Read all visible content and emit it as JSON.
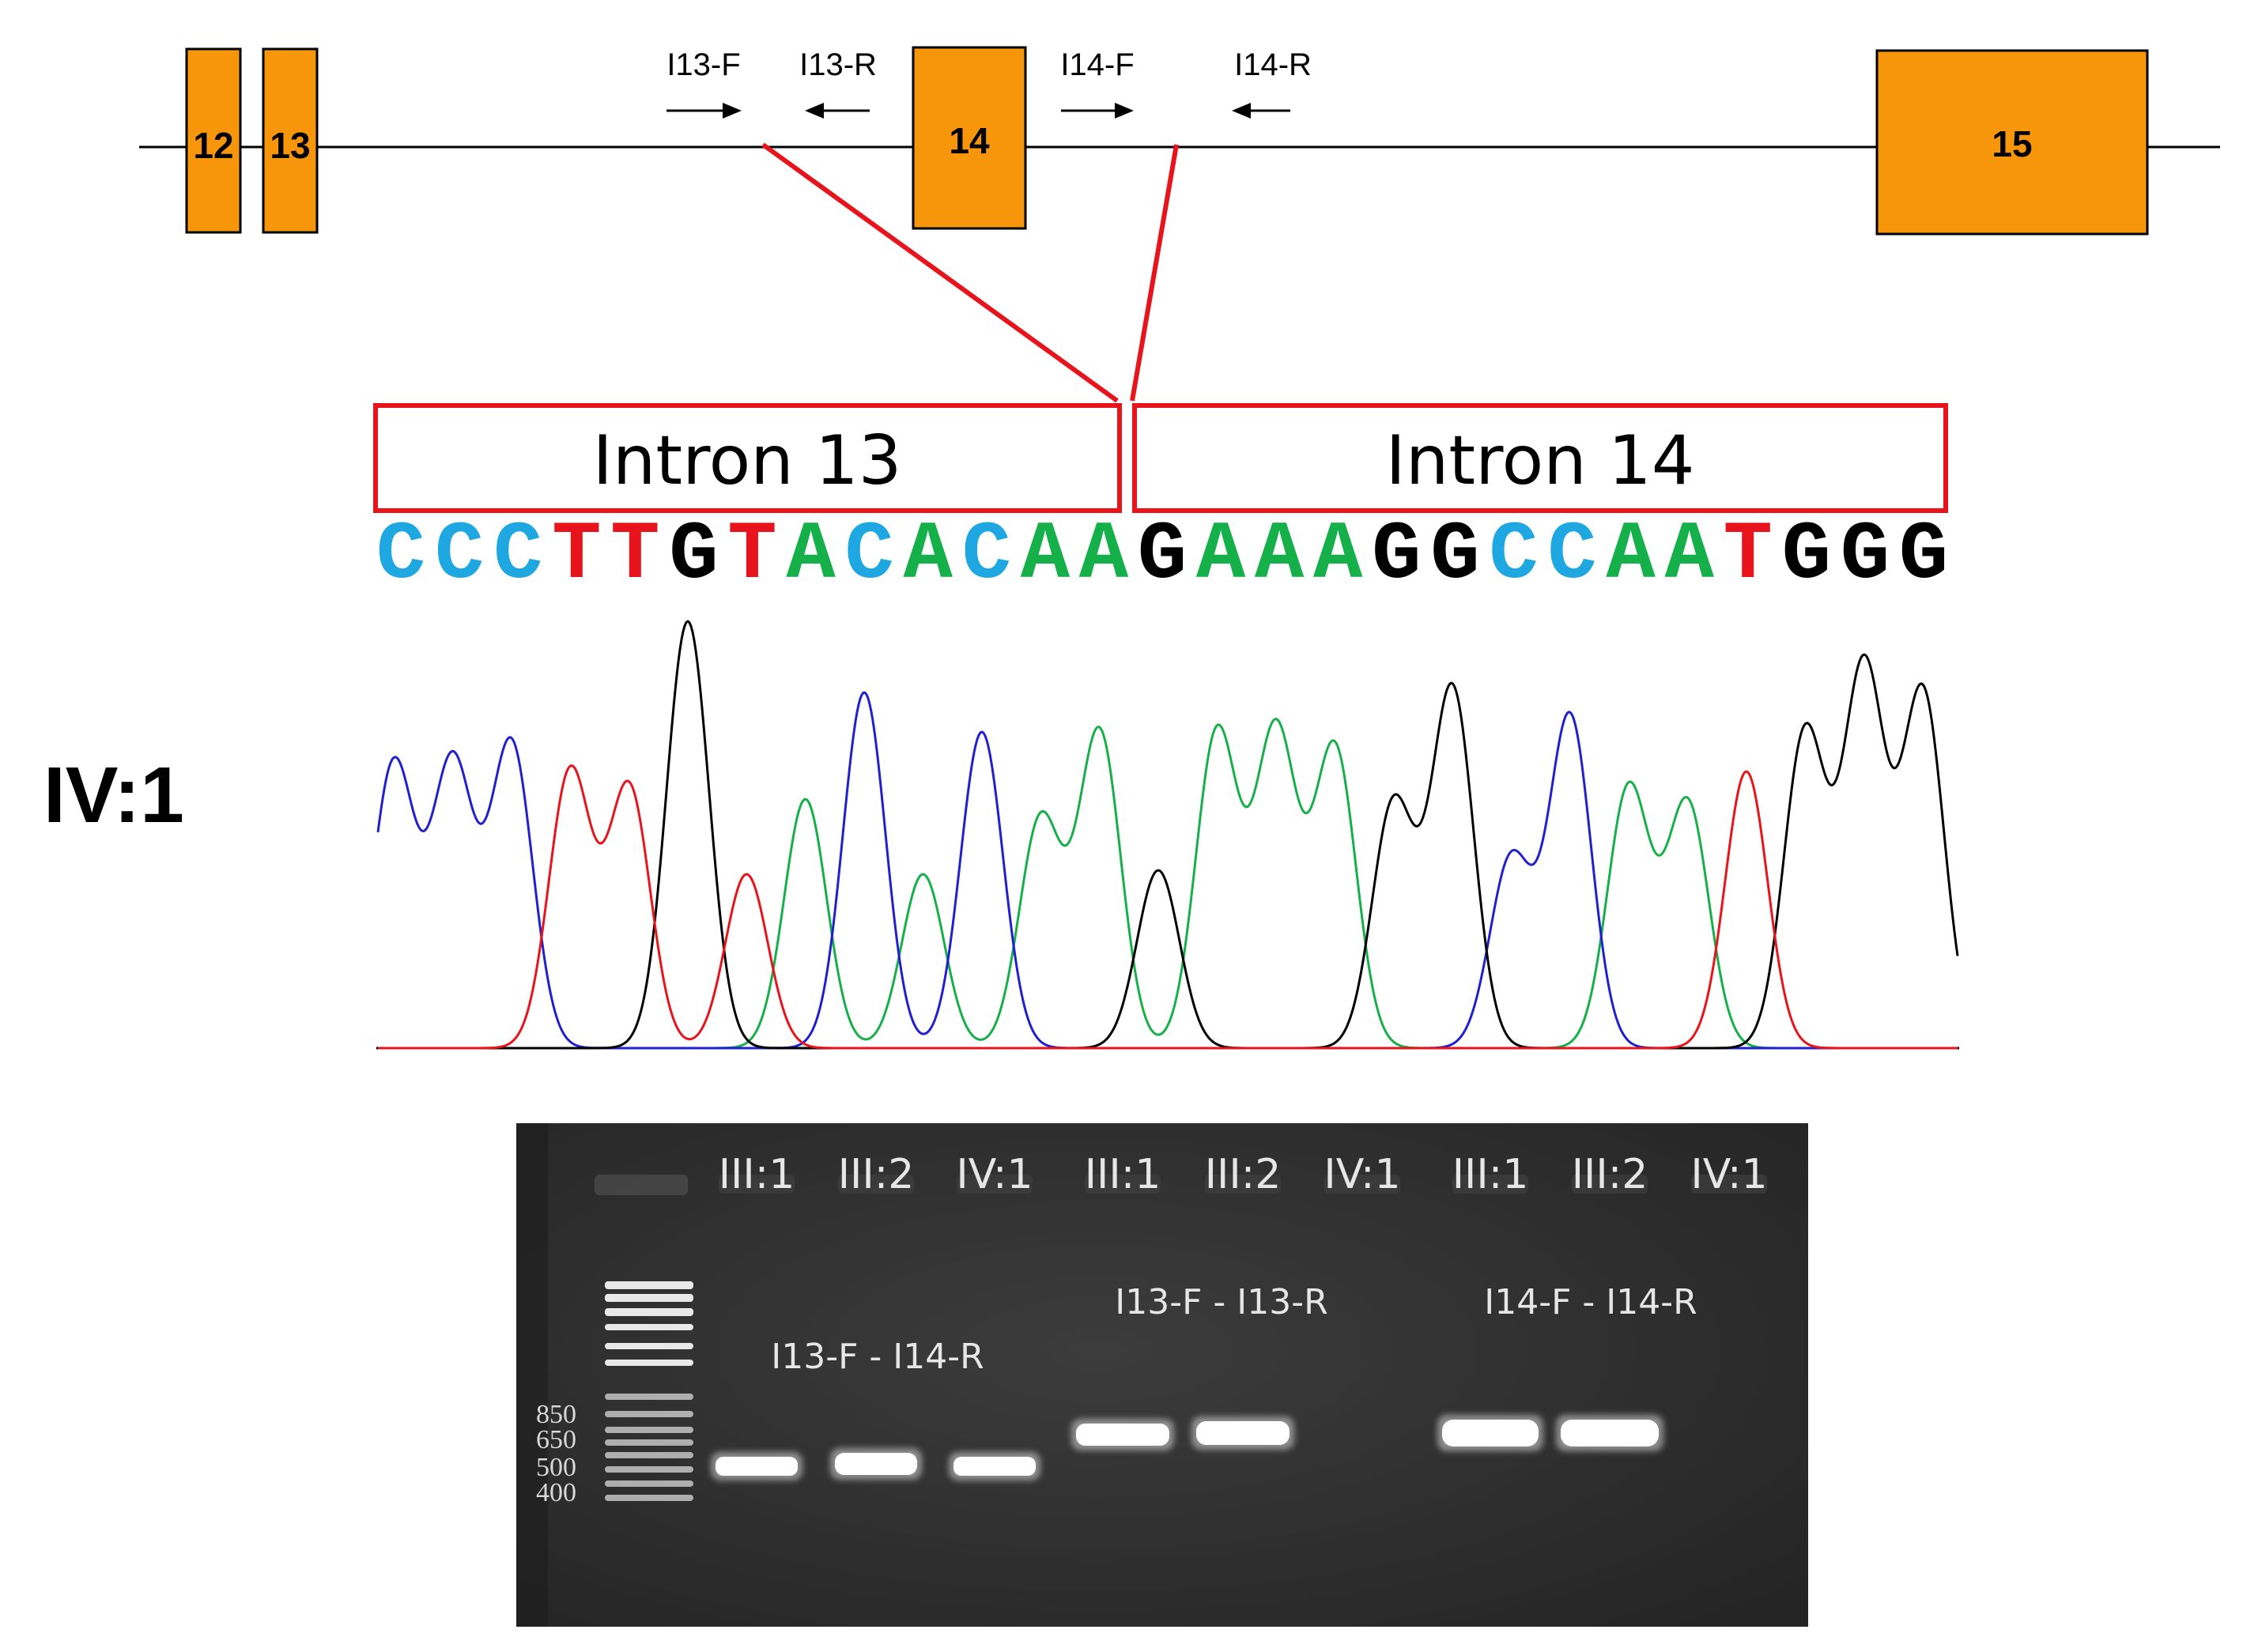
{
  "gene_map": {
    "exons": [
      "12",
      "13",
      "14",
      "15"
    ],
    "primers": [
      "I13-F",
      "I13-R",
      "I14-F",
      "I14-R"
    ],
    "exon_color": "#f7960a"
  },
  "introns": {
    "left": "Intron 13",
    "right": "Intron 14",
    "box_color": "#e8141b"
  },
  "sequence": {
    "bases": "CCCTTGTACACAAGAAAGGCCAATGGG",
    "base_colors": {
      "A": "#16b04a",
      "C": "#1ea7e0",
      "G": "#000000",
      "T": "#e8141b"
    }
  },
  "chromatogram": {
    "sample": "IV:1",
    "trace_colors": {
      "A": "#16b04a",
      "C": "#2020d0",
      "G": "#000000",
      "T": "#e8141b"
    }
  },
  "gel": {
    "lanes": [
      "III:1",
      "III:2",
      "IV:1",
      "III:1",
      "III:2",
      "IV:1",
      "III:1",
      "III:2",
      "IV:1"
    ],
    "primer_pairs": [
      "I13-F - I14-R",
      "I13-F - I13-R",
      "I14-F - I14-R"
    ],
    "marker_sizes": [
      "850",
      "650",
      "500",
      "400"
    ]
  }
}
